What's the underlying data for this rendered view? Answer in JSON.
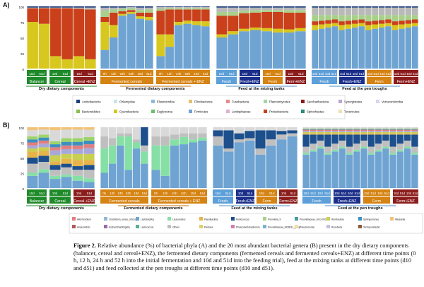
{
  "panel_a": {
    "label": "A)",
    "yticks": [
      "100",
      "75",
      "50",
      "25",
      "0"
    ],
    "groups": [
      {
        "name": "Dry dietary components",
        "color": "#1f8a2a"
      },
      {
        "name": "Fermented dietary components",
        "color": "#c8720a"
      },
      {
        "name": "Feed at the mixing tanks",
        "color": "#4a8fc9"
      },
      {
        "name": "Feed at the pen troughs",
        "color": "#4a8fc9"
      }
    ],
    "subgroups": [
      {
        "name": "Balancer",
        "color": "#1f8a2a",
        "ticks": [
          "10d",
          "51d"
        ]
      },
      {
        "name": "Cereal",
        "color": "#1f8a2a",
        "ticks": [
          "10d",
          "51d"
        ]
      },
      {
        "name": "Cereal +ENZ",
        "color": "#8c1d1d",
        "ticks": [
          "10d",
          "51d"
        ]
      },
      {
        "name": "Fermented cereals",
        "color": "#d58312",
        "ticks": [
          "0h",
          "12h",
          "24h",
          "52h",
          "10d",
          "51d"
        ]
      },
      {
        "name": "Fermented cereals + ENZ",
        "color": "#d58312",
        "ticks": [
          "0h",
          "12h",
          "24h",
          "52h",
          "10d",
          "51d"
        ]
      },
      {
        "name": "Fresh",
        "color": "#5d9fd8",
        "ticks": [
          "10d",
          "51d"
        ]
      },
      {
        "name": "Fresh+ENZ",
        "color": "#1a2e8a",
        "ticks": [
          "10d",
          "51d"
        ]
      },
      {
        "name": "Ferm",
        "color": "#d58312",
        "ticks": [
          "10d",
          "51d"
        ]
      },
      {
        "name": "Ferm+ENZ",
        "color": "#8c1d1d",
        "ticks": [
          "10d",
          "51d"
        ]
      },
      {
        "name": "Fresh",
        "color": "#5d9fd8",
        "ticks": [
          "10d",
          "51d",
          "10d",
          "51d"
        ]
      },
      {
        "name": "Fresh+ENZ",
        "color": "#1a2e8a",
        "ticks": [
          "10d",
          "51d",
          "10d",
          "51d"
        ]
      },
      {
        "name": "Ferm",
        "color": "#d58312",
        "ticks": [
          "10d",
          "51d",
          "10d",
          "51d"
        ]
      },
      {
        "name": "Ferm+ENZ",
        "color": "#8c1d1d",
        "ticks": [
          "10d",
          "51d",
          "10d",
          "51d"
        ]
      }
    ],
    "legend": [
      "Actinobacteria",
      "Chlamydiae",
      "Elusimicrobia",
      "Fibrobacteres",
      "Fusobacteria",
      "Planctomycetes",
      "Saccharibacteria",
      "Synergistetes",
      "Verrucomicrobia",
      "Bacteroidetes",
      "Cyanobacteria",
      "Euglenozoa",
      "Firmicutes",
      "Lentisphaerae",
      "Proteobacteria",
      "Spirochaetae",
      "Tenericutes"
    ],
    "colors": {
      "Firmicutes": "#6fa3d2",
      "Cyanobacteria": "#d8c71e",
      "Proteobacteria": "#c9401a",
      "Bacteroidetes": "#a8d08a",
      "Other": "#b9b9b9",
      "Actinobacteria": "#1d3f7a"
    }
  },
  "panel_b": {
    "label": "B)",
    "yticks": [
      "100",
      "75",
      "50",
      "25",
      "0"
    ],
    "groups": [
      {
        "name": "Dry dietary components",
        "color": "#1f8a2a"
      },
      {
        "name": "Fermented dietary components",
        "color": "#c8720a"
      },
      {
        "name": "Feed at the mixing tanks",
        "color": "#4a8fc9"
      },
      {
        "name": "Feed at the pen troughs",
        "color": "#4a8fc9"
      }
    ],
    "subgroups": [
      {
        "name": "Balancer",
        "color": "#1f8a2a"
      },
      {
        "name": "Cereal",
        "color": "#1f8a2a"
      },
      {
        "name": "Cereal +ENZ",
        "color": "#8c1d1d"
      },
      {
        "name": "Fermented cereals",
        "color": "#d58312"
      },
      {
        "name": "Fermented cereals + ENZ",
        "color": "#d58312"
      },
      {
        "name": "Fresh",
        "color": "#5d9fd8"
      },
      {
        "name": "Fresh+ENZ",
        "color": "#1a2e8a"
      },
      {
        "name": "Ferm",
        "color": "#d58312"
      },
      {
        "name": "Ferm+ENZ",
        "color": "#8c1d1d"
      },
      {
        "name": "Fresh",
        "color": "#5d9fd8"
      },
      {
        "name": "Fresh+ENZ",
        "color": "#1a2e8a"
      },
      {
        "name": "Ferm",
        "color": "#d58312"
      },
      {
        "name": "Ferm+ENZ",
        "color": "#8c1d1d"
      }
    ],
    "legend": [
      "Allorhizobium",
      "Clostridium_sensu_stricto_1",
      "Lactobacillus",
      "Leuconostoc",
      "Paenibacillus",
      "Pediococcus",
      "Prevotella_9",
      "Prevotellaceae_UCG-003",
      "Romboutsia",
      "Sphingomonas",
      "Weissella",
      "Anaerovibrio",
      "Escherichia/Shigella",
      "Lactococcus",
      "Others",
      "Pantoea",
      "Phascolarctobacterium",
      "Prevotellaceae_NK3B31_group",
      "Pseudomonas",
      "Roseburia",
      "Terrisporobacter"
    ]
  },
  "caption": {
    "fig": "Figure 2.",
    "text": " Relative abundance (%) of bacterial phyla (A) and the 20 most abundant bacterial genera (B) present in the dry dietary components (balancer, cereal and cereal+ENZ), the fermented dietary components (fermented cereals and fermented cereals+ENZ) at different time points (0 h, 12 h, 24 h and 52 h into the initial fermentation and 10d and 51d into the feeding trial), feed at the mixing tanks at different time points (d10 and d51) and feed collected at the pen troughs at different time points (d10 and d51)."
  }
}
